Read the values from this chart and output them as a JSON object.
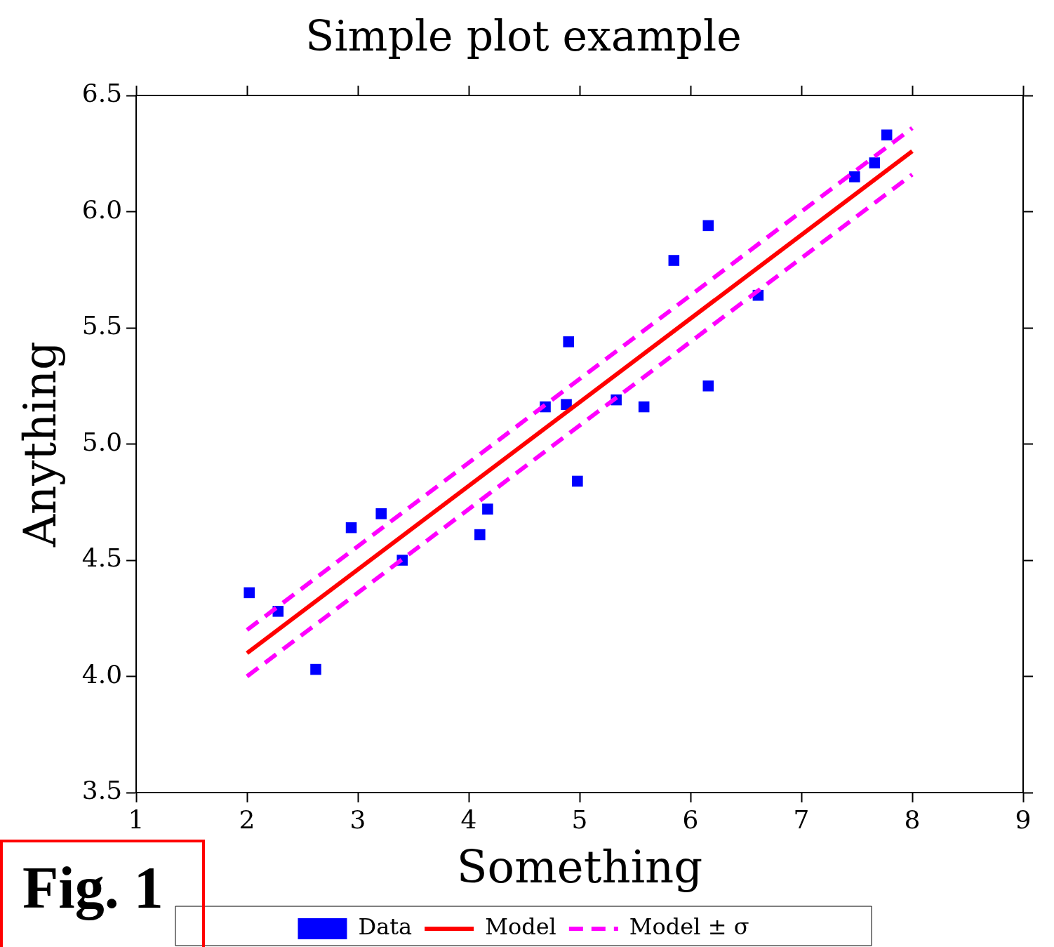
{
  "chart_data": {
    "type": "scatter",
    "title": "Simple plot example",
    "xlabel": "Something",
    "ylabel": "Anything",
    "xlim": [
      1,
      9
    ],
    "xticks": [
      1,
      2,
      3,
      4,
      5,
      6,
      7,
      8,
      9
    ],
    "ylim": [
      3.5,
      6.5
    ],
    "yticks": [
      {
        "value": 3.5,
        "label": "3.5"
      },
      {
        "value": 4,
        "label": "4.0"
      },
      {
        "value": 4.5,
        "label": "4.5"
      },
      {
        "value": 5,
        "label": "5.0"
      },
      {
        "value": 5.5,
        "label": "5.5"
      },
      {
        "value": 6,
        "label": "6.0"
      },
      {
        "value": 6.5,
        "label": "6.5"
      }
    ],
    "grid": false,
    "legend": "bottom",
    "marker": "square",
    "annotations": [
      "Fig. 1"
    ],
    "series": [
      {
        "name": "Data",
        "type": "scatter",
        "color": "#0000ff",
        "x": [
          2.02,
          2.28,
          2.62,
          2.94,
          3.21,
          3.4,
          4.1,
          4.17,
          4.69,
          4.88,
          4.9,
          4.98,
          5.33,
          5.58,
          5.85,
          6.16,
          6.16,
          6.61,
          7.48,
          7.66,
          7.77
        ],
        "values": [
          4.36,
          4.28,
          4.03,
          4.64,
          4.7,
          4.5,
          4.61,
          4.72,
          5.16,
          5.17,
          5.44,
          4.84,
          5.19,
          5.16,
          5.79,
          5.94,
          5.25,
          5.64,
          6.15,
          6.21,
          6.33
        ]
      },
      {
        "name": "Model",
        "type": "line",
        "color": "#ff0000",
        "line_style": "solid",
        "marker": "none",
        "x": [
          2,
          8
        ],
        "values": [
          4.1,
          6.26
        ]
      },
      {
        "name": "Model ± σ",
        "type": "line",
        "color": "#ff00ff",
        "line_style": "dashed",
        "marker": "none",
        "x": [
          2,
          8
        ],
        "values": [
          4.2,
          6.36
        ]
      },
      {
        "type": "line",
        "color": "#ff00ff",
        "line_style": "dashed",
        "marker": "none",
        "x": [
          2,
          8
        ],
        "values": [
          4.0,
          6.16
        ]
      }
    ]
  }
}
